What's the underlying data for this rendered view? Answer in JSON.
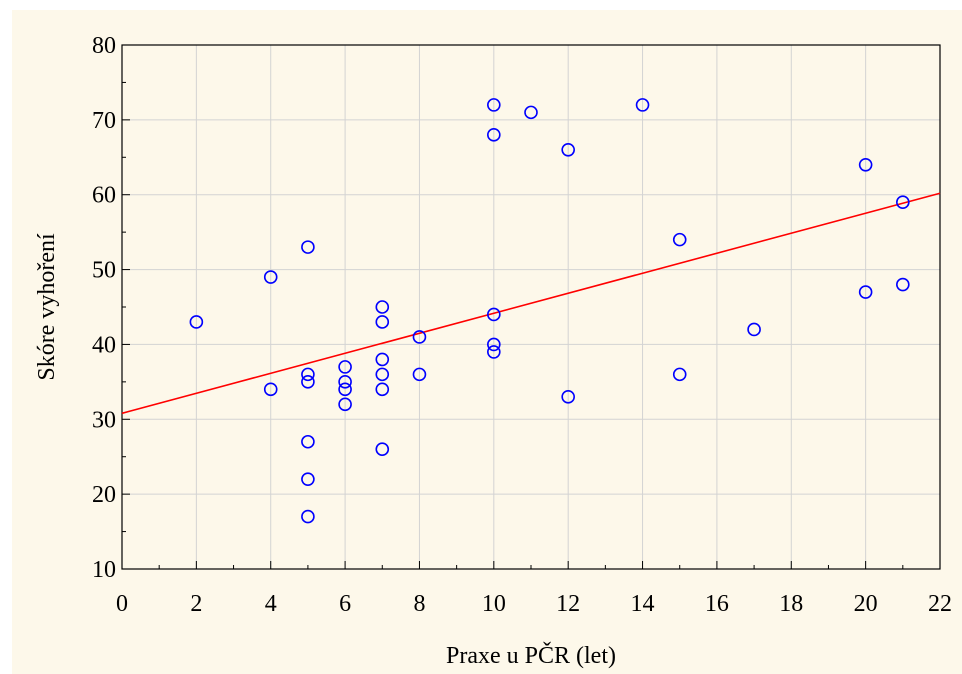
{
  "chart_data": {
    "type": "scatter",
    "xlabel": "Praxe u PČR (let)",
    "ylabel": "Skóre vyhoření",
    "xlim": [
      0,
      22
    ],
    "ylim": [
      10,
      80
    ],
    "x_ticks": [
      "0",
      "2",
      "4",
      "6",
      "8",
      "10",
      "12",
      "14",
      "16",
      "18",
      "20",
      "22"
    ],
    "y_ticks": [
      "10",
      "20",
      "30",
      "40",
      "50",
      "60",
      "70",
      "80"
    ],
    "grid": true,
    "points": [
      {
        "x": 2,
        "y": 43
      },
      {
        "x": 4,
        "y": 49
      },
      {
        "x": 4,
        "y": 34
      },
      {
        "x": 5,
        "y": 53
      },
      {
        "x": 5,
        "y": 36
      },
      {
        "x": 5,
        "y": 35
      },
      {
        "x": 5,
        "y": 27
      },
      {
        "x": 5,
        "y": 22
      },
      {
        "x": 5,
        "y": 17
      },
      {
        "x": 6,
        "y": 37
      },
      {
        "x": 6,
        "y": 35
      },
      {
        "x": 6,
        "y": 34
      },
      {
        "x": 6,
        "y": 32
      },
      {
        "x": 7,
        "y": 45
      },
      {
        "x": 7,
        "y": 43
      },
      {
        "x": 7,
        "y": 38
      },
      {
        "x": 7,
        "y": 36
      },
      {
        "x": 7,
        "y": 34
      },
      {
        "x": 7,
        "y": 26
      },
      {
        "x": 8,
        "y": 41
      },
      {
        "x": 8,
        "y": 36
      },
      {
        "x": 10,
        "y": 72
      },
      {
        "x": 10,
        "y": 68
      },
      {
        "x": 10,
        "y": 44
      },
      {
        "x": 10,
        "y": 40
      },
      {
        "x": 10,
        "y": 39
      },
      {
        "x": 11,
        "y": 71
      },
      {
        "x": 12,
        "y": 66
      },
      {
        "x": 12,
        "y": 33
      },
      {
        "x": 14,
        "y": 72
      },
      {
        "x": 15,
        "y": 54
      },
      {
        "x": 15,
        "y": 36
      },
      {
        "x": 17,
        "y": 42
      },
      {
        "x": 20,
        "y": 64
      },
      {
        "x": 20,
        "y": 47
      },
      {
        "x": 21,
        "y": 59
      },
      {
        "x": 21,
        "y": 48
      }
    ],
    "trendline": {
      "x": [
        0,
        22
      ],
      "y": [
        30.8,
        60.2
      ]
    },
    "colors": {
      "points": "#0000ff",
      "trendline": "#ff0000",
      "grid": "#d3d3d3",
      "background": "#fdf8ea"
    }
  }
}
